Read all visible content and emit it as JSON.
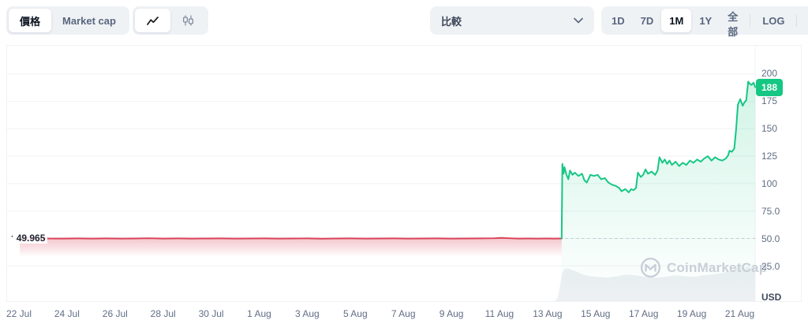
{
  "toolbar": {
    "metric_toggle": {
      "price_label": "價格",
      "marketcap_label": "Market cap"
    },
    "compare_label": "比較",
    "range_buttons": [
      "1D",
      "7D",
      "1M",
      "1Y",
      "全部"
    ],
    "range_selected": "1M",
    "log_label": "LOG",
    "more_label": "···"
  },
  "chart": {
    "open_marker": "·",
    "open_price_label": "49.965",
    "last_price_label": "188",
    "unit_label": "USD",
    "watermark": "CoinMarketCap",
    "colors": {
      "up": "#16c784",
      "down": "#d94358",
      "badge": "#16c784",
      "grid": "#f0f2f5",
      "volume": "#edf0f3",
      "dashed": "#c3cbd6"
    }
  },
  "chart_data": {
    "type": "line",
    "title": "",
    "xlabel": "",
    "ylabel": "USD",
    "grid": "horizontal",
    "legend": "none",
    "x_unit": "days since 22 Jul",
    "x_tick_days": [
      0,
      2,
      4,
      6,
      8,
      10,
      12,
      14,
      16,
      18,
      20,
      22,
      24,
      26,
      28,
      30
    ],
    "x_tick_labels": [
      "22 Jul",
      "24 Jul",
      "26 Jul",
      "28 Jul",
      "30 Jul",
      "1 Aug",
      "3 Aug",
      "5 Aug",
      "7 Aug",
      "9 Aug",
      "11 Aug",
      "13 Aug",
      "15 Aug",
      "17 Aug",
      "19 Aug",
      "21 Aug"
    ],
    "y_ticks": [
      {
        "v": 200,
        "label": "200"
      },
      {
        "v": 175,
        "label": "175"
      },
      {
        "v": 150,
        "label": "150"
      },
      {
        "v": 125,
        "label": "125"
      },
      {
        "v": 100,
        "label": "100"
      },
      {
        "v": 75,
        "label": "75.0"
      },
      {
        "v": 50,
        "label": "50.0"
      },
      {
        "v": 25,
        "label": "25.0"
      }
    ],
    "ylim": [
      0,
      225
    ],
    "open_price": 49.965,
    "last_price": 188,
    "series": [
      {
        "name": "price-before-jump",
        "color": "#d94358",
        "points": [
          [
            0,
            50.0
          ],
          [
            0.6,
            50.4
          ],
          [
            1.2,
            50.0
          ],
          [
            1.8,
            49.9
          ],
          [
            2.4,
            50.1
          ],
          [
            3.0,
            49.9
          ],
          [
            3.6,
            50.1
          ],
          [
            4.2,
            49.9
          ],
          [
            4.8,
            50.0
          ],
          [
            5.4,
            50.2
          ],
          [
            6.0,
            49.9
          ],
          [
            6.6,
            50.1
          ],
          [
            7.2,
            49.9
          ],
          [
            7.8,
            50.0
          ],
          [
            8.4,
            50.1
          ],
          [
            9.0,
            49.9
          ],
          [
            9.6,
            50.0
          ],
          [
            10.2,
            50.1
          ],
          [
            10.8,
            49.9
          ],
          [
            11.4,
            50.0
          ],
          [
            12.0,
            50.1
          ],
          [
            12.6,
            49.8
          ],
          [
            13.2,
            50.0
          ],
          [
            13.8,
            50.1
          ],
          [
            14.4,
            49.9
          ],
          [
            15.0,
            50.0
          ],
          [
            15.6,
            50.1
          ],
          [
            16.2,
            49.9
          ],
          [
            16.8,
            50.0
          ],
          [
            17.4,
            50.1
          ],
          [
            18.0,
            49.9
          ],
          [
            18.6,
            50.0
          ],
          [
            19.2,
            50.1
          ],
          [
            19.8,
            50.2
          ],
          [
            20.1,
            50.5
          ],
          [
            20.4,
            50.2
          ],
          [
            20.8,
            49.9
          ],
          [
            21.2,
            50.0
          ],
          [
            21.6,
            49.9
          ],
          [
            22.0,
            50.0
          ],
          [
            22.3,
            49.9
          ],
          [
            22.6,
            49.965
          ]
        ]
      },
      {
        "name": "price-after-jump",
        "color": "#16c784",
        "points": [
          [
            22.6,
            49.965
          ],
          [
            22.63,
            118
          ],
          [
            22.68,
            109
          ],
          [
            22.72,
            115
          ],
          [
            22.8,
            108
          ],
          [
            22.88,
            104
          ],
          [
            22.95,
            112
          ],
          [
            23.05,
            108
          ],
          [
            23.15,
            110
          ],
          [
            23.3,
            107
          ],
          [
            23.45,
            109
          ],
          [
            23.55,
            103
          ],
          [
            23.65,
            101
          ],
          [
            23.8,
            108
          ],
          [
            23.95,
            107
          ],
          [
            24.1,
            108
          ],
          [
            24.25,
            104
          ],
          [
            24.4,
            105
          ],
          [
            24.55,
            101
          ],
          [
            24.7,
            99
          ],
          [
            24.85,
            98
          ],
          [
            25.0,
            96
          ],
          [
            25.1,
            93
          ],
          [
            25.25,
            95
          ],
          [
            25.4,
            92
          ],
          [
            25.5,
            95
          ],
          [
            25.6,
            94
          ],
          [
            25.7,
            96
          ],
          [
            25.78,
            110
          ],
          [
            25.9,
            106
          ],
          [
            26.0,
            108
          ],
          [
            26.1,
            113
          ],
          [
            26.2,
            109
          ],
          [
            26.35,
            111
          ],
          [
            26.5,
            108
          ],
          [
            26.6,
            112
          ],
          [
            26.68,
            124
          ],
          [
            26.8,
            119
          ],
          [
            26.9,
            122
          ],
          [
            27.0,
            118
          ],
          [
            27.1,
            121
          ],
          [
            27.2,
            117
          ],
          [
            27.35,
            120
          ],
          [
            27.5,
            116
          ],
          [
            27.65,
            119
          ],
          [
            27.8,
            117
          ],
          [
            27.95,
            121
          ],
          [
            28.1,
            119
          ],
          [
            28.25,
            122
          ],
          [
            28.4,
            120
          ],
          [
            28.55,
            123
          ],
          [
            28.7,
            125
          ],
          [
            28.85,
            121
          ],
          [
            29.0,
            124
          ],
          [
            29.15,
            122
          ],
          [
            29.3,
            121
          ],
          [
            29.45,
            123
          ],
          [
            29.55,
            126
          ],
          [
            29.6,
            130
          ],
          [
            29.7,
            129
          ],
          [
            29.8,
            132
          ],
          [
            29.88,
            150
          ],
          [
            29.95,
            172
          ],
          [
            30.05,
            177
          ],
          [
            30.15,
            171
          ],
          [
            30.22,
            174
          ],
          [
            30.3,
            176
          ],
          [
            30.38,
            193
          ],
          [
            30.45,
            191
          ],
          [
            30.52,
            190
          ],
          [
            30.6,
            192
          ],
          [
            30.68,
            188
          ]
        ]
      }
    ],
    "volume_profile": {
      "comment": "light silhouette at bottom right, [day, height_px]",
      "points_d_h": [
        [
          22.3,
          0
        ],
        [
          22.42,
          3
        ],
        [
          22.5,
          14
        ],
        [
          22.62,
          36
        ],
        [
          22.72,
          41
        ],
        [
          22.85,
          42
        ],
        [
          23.0,
          40
        ],
        [
          23.2,
          38
        ],
        [
          23.5,
          34
        ],
        [
          23.8,
          32
        ],
        [
          24.1,
          31
        ],
        [
          24.5,
          30
        ],
        [
          24.9,
          32
        ],
        [
          25.3,
          34
        ],
        [
          25.7,
          33
        ],
        [
          26.1,
          31
        ],
        [
          26.5,
          30
        ],
        [
          26.9,
          31
        ],
        [
          27.3,
          33
        ],
        [
          27.7,
          32
        ],
        [
          28.1,
          31
        ],
        [
          28.5,
          33
        ],
        [
          28.9,
          34
        ],
        [
          29.3,
          36
        ],
        [
          29.55,
          38
        ],
        [
          29.75,
          40
        ],
        [
          29.9,
          43
        ],
        [
          30.05,
          45
        ],
        [
          30.2,
          42
        ],
        [
          30.35,
          44
        ],
        [
          30.5,
          43
        ],
        [
          30.68,
          44
        ]
      ]
    }
  }
}
